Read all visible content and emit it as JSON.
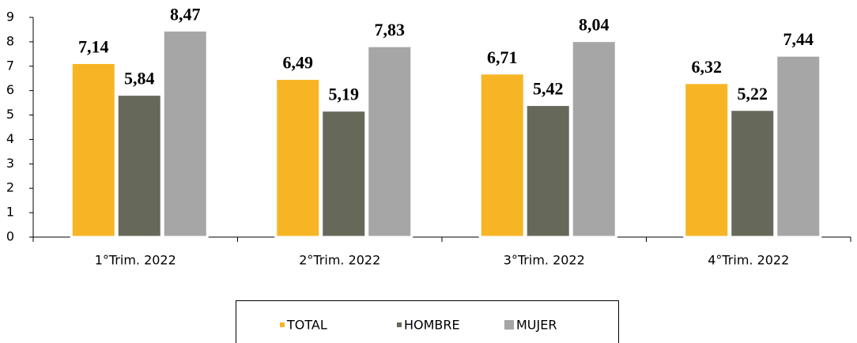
{
  "chart_data": {
    "type": "bar",
    "categories": [
      "1°Trim. 2022",
      "2°Trim. 2022",
      "3°Trim. 2022",
      "4°Trim. 2022"
    ],
    "series": [
      {
        "name": "TOTAL",
        "color": "#f7b526",
        "values": [
          7.14,
          6.49,
          6.71,
          6.32
        ],
        "value_labels": [
          "7,14",
          "6,49",
          "6,71",
          "6,32"
        ]
      },
      {
        "name": "HOMBRE",
        "color": "#66695a",
        "values": [
          5.84,
          5.19,
          5.42,
          5.22
        ],
        "value_labels": [
          "5,84",
          "5,19",
          "5,42",
          "5,22"
        ]
      },
      {
        "name": "MUJER",
        "color": "#a6a6a6",
        "values": [
          8.47,
          7.83,
          8.04,
          7.44
        ],
        "value_labels": [
          "8,47",
          "7,83",
          "8,04",
          "7,44"
        ]
      }
    ],
    "ylim": [
      0,
      9
    ],
    "yticks": [
      0,
      1,
      2,
      3,
      4,
      5,
      6,
      7,
      8,
      9
    ],
    "grid": false,
    "legend": "bottom"
  }
}
